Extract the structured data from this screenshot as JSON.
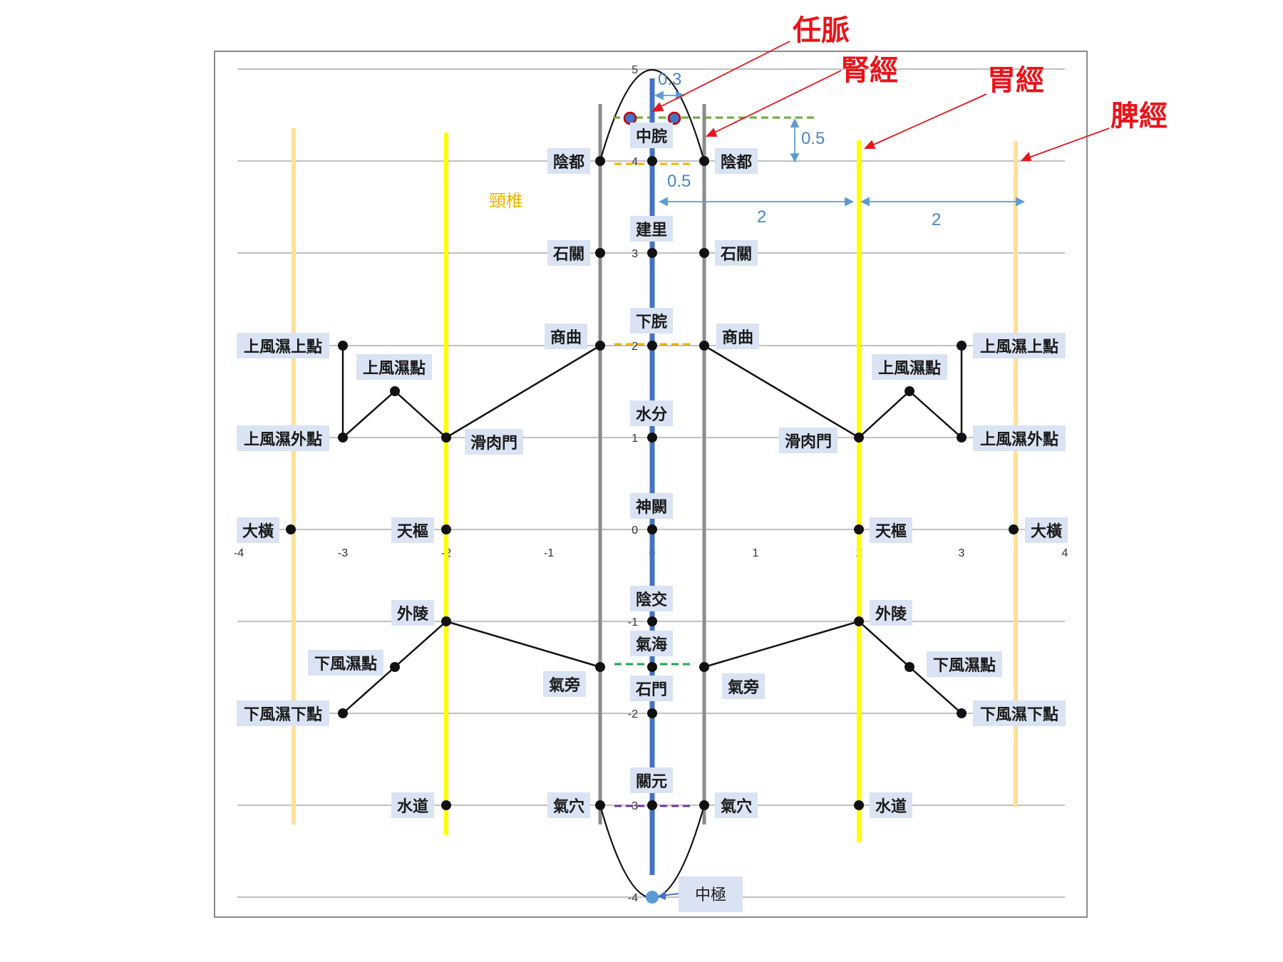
{
  "axis": {
    "x_ticks": [
      "-4",
      "-3",
      "-2",
      "-1",
      "0",
      "1",
      "2",
      "3",
      "4"
    ],
    "y_ticks": [
      "5",
      "4",
      "3",
      "2",
      "1",
      "0",
      "-1",
      "-2",
      "-3",
      "-4"
    ]
  },
  "meridians": {
    "ren": "任脈",
    "kidney": "腎經",
    "stomach": "胃經",
    "spleen": "脾經"
  },
  "dimensions": {
    "d1": "0.3",
    "d2": "0.5",
    "d3": "0.5",
    "d4": "2",
    "d5": "2"
  },
  "side_label": "頸椎",
  "points": [
    {
      "label": "中脘"
    },
    {
      "label": "陰都"
    },
    {
      "label": "陰都"
    },
    {
      "label": "建里"
    },
    {
      "label": "石關"
    },
    {
      "label": "石關"
    },
    {
      "label": "下脘"
    },
    {
      "label": "商曲"
    },
    {
      "label": "商曲"
    },
    {
      "label": "上風濕上點"
    },
    {
      "label": "上風濕上點"
    },
    {
      "label": "上風濕點"
    },
    {
      "label": "上風濕點"
    },
    {
      "label": "水分"
    },
    {
      "label": "上風濕外點"
    },
    {
      "label": "上風濕外點"
    },
    {
      "label": "滑肉門"
    },
    {
      "label": "滑肉門"
    },
    {
      "label": "神闕"
    },
    {
      "label": "大橫"
    },
    {
      "label": "大橫"
    },
    {
      "label": "天樞"
    },
    {
      "label": "天樞"
    },
    {
      "label": "陰交"
    },
    {
      "label": "外陵"
    },
    {
      "label": "外陵"
    },
    {
      "label": "氣海"
    },
    {
      "label": "下風濕點"
    },
    {
      "label": "下風濕點"
    },
    {
      "label": "氣旁"
    },
    {
      "label": "氣旁"
    },
    {
      "label": "石門"
    },
    {
      "label": "下風濕下點"
    },
    {
      "label": "下風濕下點"
    },
    {
      "label": "關元"
    },
    {
      "label": "水道"
    },
    {
      "label": "水道"
    },
    {
      "label": "氣穴"
    },
    {
      "label": "氣穴"
    },
    {
      "label": "中極"
    }
  ]
}
